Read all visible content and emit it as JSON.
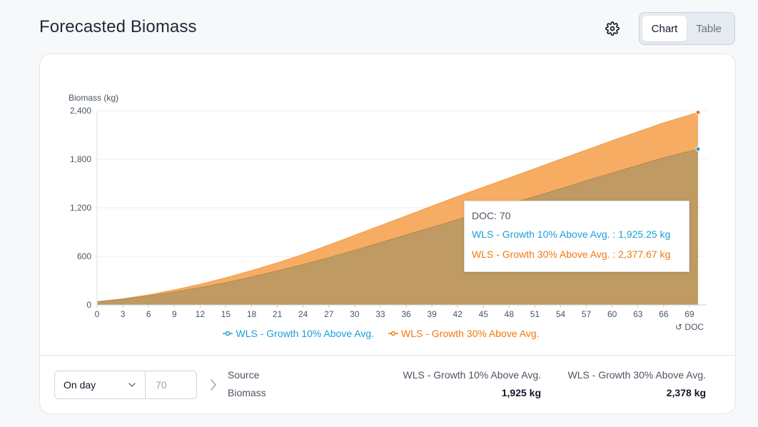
{
  "header": {
    "title": "Forecasted Biomass"
  },
  "view_toggle": {
    "chart_label": "Chart",
    "table_label": "Table",
    "selected": "Chart"
  },
  "icons": {
    "settings": "gear-icon",
    "dropdown": "chevron-down-icon",
    "next": "chevron-right-icon",
    "reset": "reset-icon"
  },
  "colors": {
    "series1": "#1a9fd8",
    "series2": "#f2780c",
    "area_front": "#bf9a63",
    "area_back": "#f6ad63"
  },
  "chart_data": {
    "type": "area",
    "ylabel": "Biomass (kg)",
    "xlabel": "DOC",
    "xlabel_prefix": "↺",
    "ylim": [
      0,
      2400
    ],
    "yticks": [
      0,
      600,
      1200,
      1800,
      2400
    ],
    "ytick_labels": [
      "0",
      "600",
      "1,200",
      "1,800",
      "2,400"
    ],
    "xlim": [
      0,
      71
    ],
    "xticks": [
      0,
      3,
      6,
      9,
      12,
      15,
      18,
      21,
      24,
      27,
      30,
      33,
      36,
      39,
      42,
      45,
      48,
      51,
      54,
      57,
      60,
      63,
      66,
      69
    ],
    "series": [
      {
        "name": "WLS - Growth 30% Above Avg.",
        "color": "#f2780c",
        "x": [
          0,
          3,
          6,
          9,
          12,
          15,
          18,
          21,
          24,
          27,
          30,
          33,
          36,
          39,
          42,
          45,
          48,
          51,
          54,
          57,
          60,
          63,
          66,
          70
        ],
        "values": [
          40,
          75,
          125,
          185,
          255,
          335,
          425,
          520,
          625,
          740,
          860,
          980,
          1100,
          1220,
          1340,
          1455,
          1570,
          1685,
          1800,
          1915,
          2030,
          2140,
          2250,
          2377.67
        ]
      },
      {
        "name": "WLS - Growth 10% Above Avg.",
        "color": "#1a9fd8",
        "x": [
          0,
          3,
          6,
          9,
          12,
          15,
          18,
          21,
          24,
          27,
          30,
          33,
          36,
          39,
          42,
          45,
          48,
          51,
          54,
          57,
          60,
          63,
          66,
          70
        ],
        "values": [
          40,
          70,
          110,
          160,
          215,
          275,
          345,
          420,
          500,
          585,
          675,
          770,
          865,
          960,
          1055,
          1150,
          1245,
          1340,
          1435,
          1535,
          1630,
          1725,
          1820,
          1925.25
        ]
      }
    ]
  },
  "tooltip": {
    "title": "DOC: 70",
    "rows": [
      {
        "text": "WLS - Growth 10% Above Avg. : 1,925.25 kg",
        "color": "#1a9fd8"
      },
      {
        "text": "WLS - Growth 30% Above Avg. : 2,377.67 kg",
        "color": "#f2780c"
      }
    ]
  },
  "legend": [
    {
      "label": "WLS - Growth 10% Above Avg.",
      "color": "#1a9fd8"
    },
    {
      "label": "WLS - Growth 30% Above Avg.",
      "color": "#f2780c"
    }
  ],
  "footer": {
    "mode_select": "On day",
    "day_value": "70",
    "source_label": "Source",
    "biomass_label": "Biomass",
    "columns": [
      {
        "name": "WLS - Growth 10% Above Avg.",
        "biomass": "1,925 kg"
      },
      {
        "name": "WLS - Growth 30% Above Avg.",
        "biomass": "2,378 kg"
      }
    ]
  }
}
